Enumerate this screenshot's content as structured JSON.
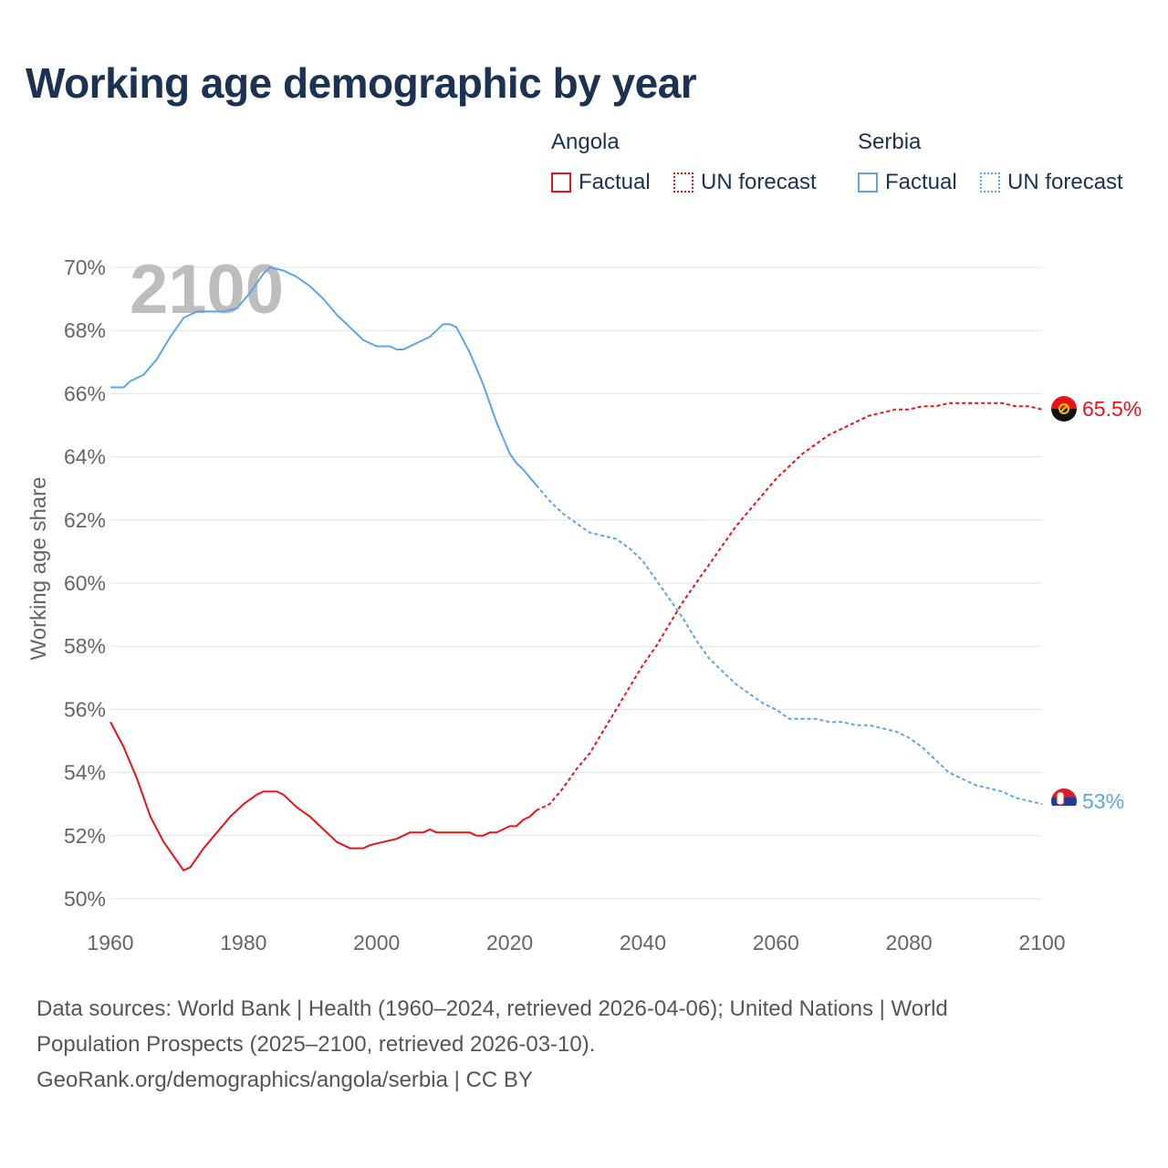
{
  "title": "Working age demographic by year",
  "legend": {
    "groups": [
      {
        "name": "Angola",
        "color": "#e8141a",
        "factual_label": "Factual",
        "forecast_label": "UN forecast"
      },
      {
        "name": "Serbia",
        "color": "#5ea5e6",
        "factual_label": "Factual",
        "forecast_label": "UN forecast"
      }
    ]
  },
  "year_watermark": "2100",
  "footer": {
    "line1": "Data sources: World Bank | Health (1960–2024, retrieved 2026-04-06); United Nations | World",
    "line2": "Population Prospects (2025–2100, retrieved 2026-03-10).",
    "line3": "GeoRank.org/demographics/angola/serbia | CC BY"
  },
  "chart_data": {
    "type": "line",
    "title": "Working age demographic by year",
    "xlabel": "",
    "ylabel": "Working age share",
    "xlim": [
      1960,
      2100
    ],
    "ylim": [
      50,
      70
    ],
    "x_ticks": [
      1960,
      1980,
      2000,
      2020,
      2040,
      2060,
      2080,
      2100
    ],
    "x_tick_labels": [
      "1960",
      "1980",
      "2000",
      "2020",
      "2040",
      "2060",
      "2080",
      "2100"
    ],
    "y_ticks": [
      50,
      52,
      54,
      56,
      58,
      60,
      62,
      64,
      66,
      68,
      70
    ],
    "y_tick_labels": [
      "50%",
      "52%",
      "54%",
      "56%",
      "58%",
      "60%",
      "62%",
      "64%",
      "66%",
      "68%",
      "70%"
    ],
    "grid": true,
    "forecast_start": 2025,
    "series": [
      {
        "name": "Angola",
        "color": "#e8141a",
        "end_label": "65.5%",
        "points": [
          [
            1960,
            55.6
          ],
          [
            1962,
            54.8
          ],
          [
            1964,
            53.8
          ],
          [
            1966,
            52.6
          ],
          [
            1968,
            51.8
          ],
          [
            1970,
            51.2
          ],
          [
            1971,
            50.9
          ],
          [
            1972,
            51.0
          ],
          [
            1974,
            51.6
          ],
          [
            1976,
            52.1
          ],
          [
            1978,
            52.6
          ],
          [
            1980,
            53.0
          ],
          [
            1982,
            53.3
          ],
          [
            1983,
            53.4
          ],
          [
            1985,
            53.4
          ],
          [
            1986,
            53.3
          ],
          [
            1988,
            52.9
          ],
          [
            1990,
            52.6
          ],
          [
            1992,
            52.2
          ],
          [
            1994,
            51.8
          ],
          [
            1996,
            51.6
          ],
          [
            1998,
            51.6
          ],
          [
            1999,
            51.7
          ],
          [
            2001,
            51.8
          ],
          [
            2003,
            51.9
          ],
          [
            2005,
            52.1
          ],
          [
            2007,
            52.1
          ],
          [
            2008,
            52.2
          ],
          [
            2009,
            52.1
          ],
          [
            2011,
            52.1
          ],
          [
            2013,
            52.1
          ],
          [
            2014,
            52.1
          ],
          [
            2015,
            52.0
          ],
          [
            2016,
            52.0
          ],
          [
            2017,
            52.1
          ],
          [
            2018,
            52.1
          ],
          [
            2019,
            52.2
          ],
          [
            2020,
            52.3
          ],
          [
            2021,
            52.3
          ],
          [
            2022,
            52.5
          ],
          [
            2023,
            52.6
          ],
          [
            2024,
            52.8
          ],
          [
            2026,
            53.0
          ],
          [
            2028,
            53.5
          ],
          [
            2030,
            54.1
          ],
          [
            2032,
            54.6
          ],
          [
            2034,
            55.3
          ],
          [
            2036,
            56.0
          ],
          [
            2038,
            56.7
          ],
          [
            2040,
            57.4
          ],
          [
            2042,
            58.0
          ],
          [
            2044,
            58.7
          ],
          [
            2046,
            59.4
          ],
          [
            2048,
            60.0
          ],
          [
            2050,
            60.6
          ],
          [
            2052,
            61.2
          ],
          [
            2054,
            61.8
          ],
          [
            2056,
            62.3
          ],
          [
            2058,
            62.8
          ],
          [
            2060,
            63.3
          ],
          [
            2062,
            63.7
          ],
          [
            2064,
            64.1
          ],
          [
            2066,
            64.4
          ],
          [
            2068,
            64.7
          ],
          [
            2070,
            64.9
          ],
          [
            2072,
            65.1
          ],
          [
            2074,
            65.3
          ],
          [
            2076,
            65.4
          ],
          [
            2078,
            65.5
          ],
          [
            2080,
            65.5
          ],
          [
            2082,
            65.6
          ],
          [
            2084,
            65.6
          ],
          [
            2086,
            65.7
          ],
          [
            2088,
            65.7
          ],
          [
            2090,
            65.7
          ],
          [
            2092,
            65.7
          ],
          [
            2094,
            65.7
          ],
          [
            2096,
            65.6
          ],
          [
            2098,
            65.6
          ],
          [
            2100,
            65.5
          ]
        ]
      },
      {
        "name": "Serbia",
        "color": "#5ea5e6",
        "end_label": "53%",
        "points": [
          [
            1960,
            66.2
          ],
          [
            1962,
            66.2
          ],
          [
            1963,
            66.4
          ],
          [
            1965,
            66.6
          ],
          [
            1967,
            67.1
          ],
          [
            1969,
            67.8
          ],
          [
            1971,
            68.4
          ],
          [
            1973,
            68.6
          ],
          [
            1975,
            68.6
          ],
          [
            1977,
            68.6
          ],
          [
            1979,
            68.7
          ],
          [
            1981,
            69.2
          ],
          [
            1983,
            69.8
          ],
          [
            1984,
            70.0
          ],
          [
            1986,
            69.9
          ],
          [
            1988,
            69.7
          ],
          [
            1990,
            69.4
          ],
          [
            1992,
            69.0
          ],
          [
            1994,
            68.5
          ],
          [
            1996,
            68.1
          ],
          [
            1998,
            67.7
          ],
          [
            2000,
            67.5
          ],
          [
            2002,
            67.5
          ],
          [
            2003,
            67.4
          ],
          [
            2004,
            67.4
          ],
          [
            2006,
            67.6
          ],
          [
            2008,
            67.8
          ],
          [
            2009,
            68.0
          ],
          [
            2010,
            68.2
          ],
          [
            2011,
            68.2
          ],
          [
            2012,
            68.1
          ],
          [
            2014,
            67.3
          ],
          [
            2016,
            66.3
          ],
          [
            2018,
            65.1
          ],
          [
            2020,
            64.1
          ],
          [
            2021,
            63.8
          ],
          [
            2022,
            63.6
          ],
          [
            2024,
            63.1
          ],
          [
            2026,
            62.6
          ],
          [
            2028,
            62.2
          ],
          [
            2030,
            61.9
          ],
          [
            2032,
            61.6
          ],
          [
            2034,
            61.5
          ],
          [
            2036,
            61.4
          ],
          [
            2038,
            61.1
          ],
          [
            2040,
            60.7
          ],
          [
            2042,
            60.1
          ],
          [
            2044,
            59.5
          ],
          [
            2046,
            58.9
          ],
          [
            2048,
            58.2
          ],
          [
            2050,
            57.6
          ],
          [
            2052,
            57.2
          ],
          [
            2054,
            56.8
          ],
          [
            2056,
            56.5
          ],
          [
            2058,
            56.2
          ],
          [
            2060,
            56.0
          ],
          [
            2062,
            55.7
          ],
          [
            2064,
            55.7
          ],
          [
            2066,
            55.7
          ],
          [
            2068,
            55.6
          ],
          [
            2070,
            55.6
          ],
          [
            2072,
            55.5
          ],
          [
            2074,
            55.5
          ],
          [
            2076,
            55.4
          ],
          [
            2078,
            55.3
          ],
          [
            2080,
            55.1
          ],
          [
            2082,
            54.8
          ],
          [
            2084,
            54.4
          ],
          [
            2086,
            54.0
          ],
          [
            2088,
            53.8
          ],
          [
            2090,
            53.6
          ],
          [
            2092,
            53.5
          ],
          [
            2094,
            53.4
          ],
          [
            2096,
            53.2
          ],
          [
            2098,
            53.1
          ],
          [
            2100,
            53.0
          ]
        ]
      }
    ]
  }
}
